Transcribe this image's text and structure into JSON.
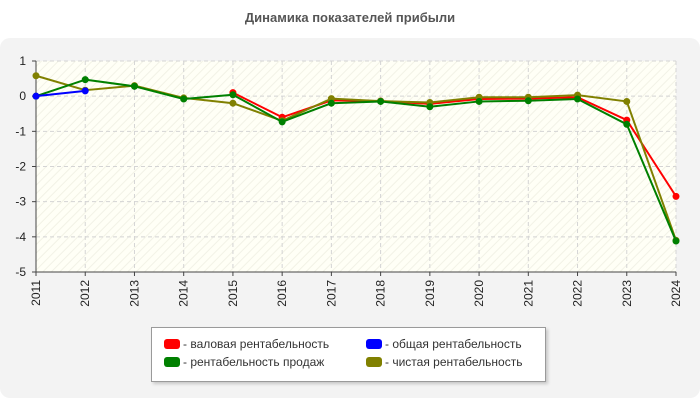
{
  "chart_data": {
    "type": "line",
    "title": "Динамика показателей прибыли",
    "x": [
      "2011",
      "2012",
      "2013",
      "2014",
      "2015",
      "2016",
      "2017",
      "2018",
      "2019",
      "2020",
      "2021",
      "2022",
      "2023",
      "2024"
    ],
    "ylim": [
      -5,
      1
    ],
    "yticks": [
      1,
      0,
      -1,
      -2,
      -3,
      -4,
      -5
    ],
    "grid": true,
    "legend_position": "bottom",
    "series": [
      {
        "name": "- валовая рентабельность",
        "color": "#ff0000",
        "values": [
          null,
          null,
          null,
          null,
          0.1,
          -0.6,
          -0.12,
          -0.14,
          -0.22,
          -0.08,
          -0.07,
          -0.03,
          -0.68,
          -2.85
        ]
      },
      {
        "name": "- общая рентабельность",
        "color": "#0000ff",
        "values": [
          0.0,
          0.15,
          null,
          null,
          null,
          null,
          null,
          null,
          null,
          null,
          null,
          null,
          null,
          null
        ]
      },
      {
        "name": "- рентабельность продаж",
        "color": "#008000",
        "values": [
          0.0,
          0.47,
          0.28,
          -0.08,
          0.04,
          -0.73,
          -0.2,
          -0.15,
          -0.3,
          -0.15,
          -0.13,
          -0.08,
          -0.8,
          -4.12
        ]
      },
      {
        "name": "- чистая рентабельность",
        "color": "#808000",
        "values": [
          0.58,
          0.17,
          0.3,
          -0.05,
          -0.2,
          -0.7,
          -0.07,
          -0.14,
          -0.18,
          -0.03,
          -0.03,
          0.03,
          -0.15,
          -4.1
        ]
      }
    ]
  }
}
